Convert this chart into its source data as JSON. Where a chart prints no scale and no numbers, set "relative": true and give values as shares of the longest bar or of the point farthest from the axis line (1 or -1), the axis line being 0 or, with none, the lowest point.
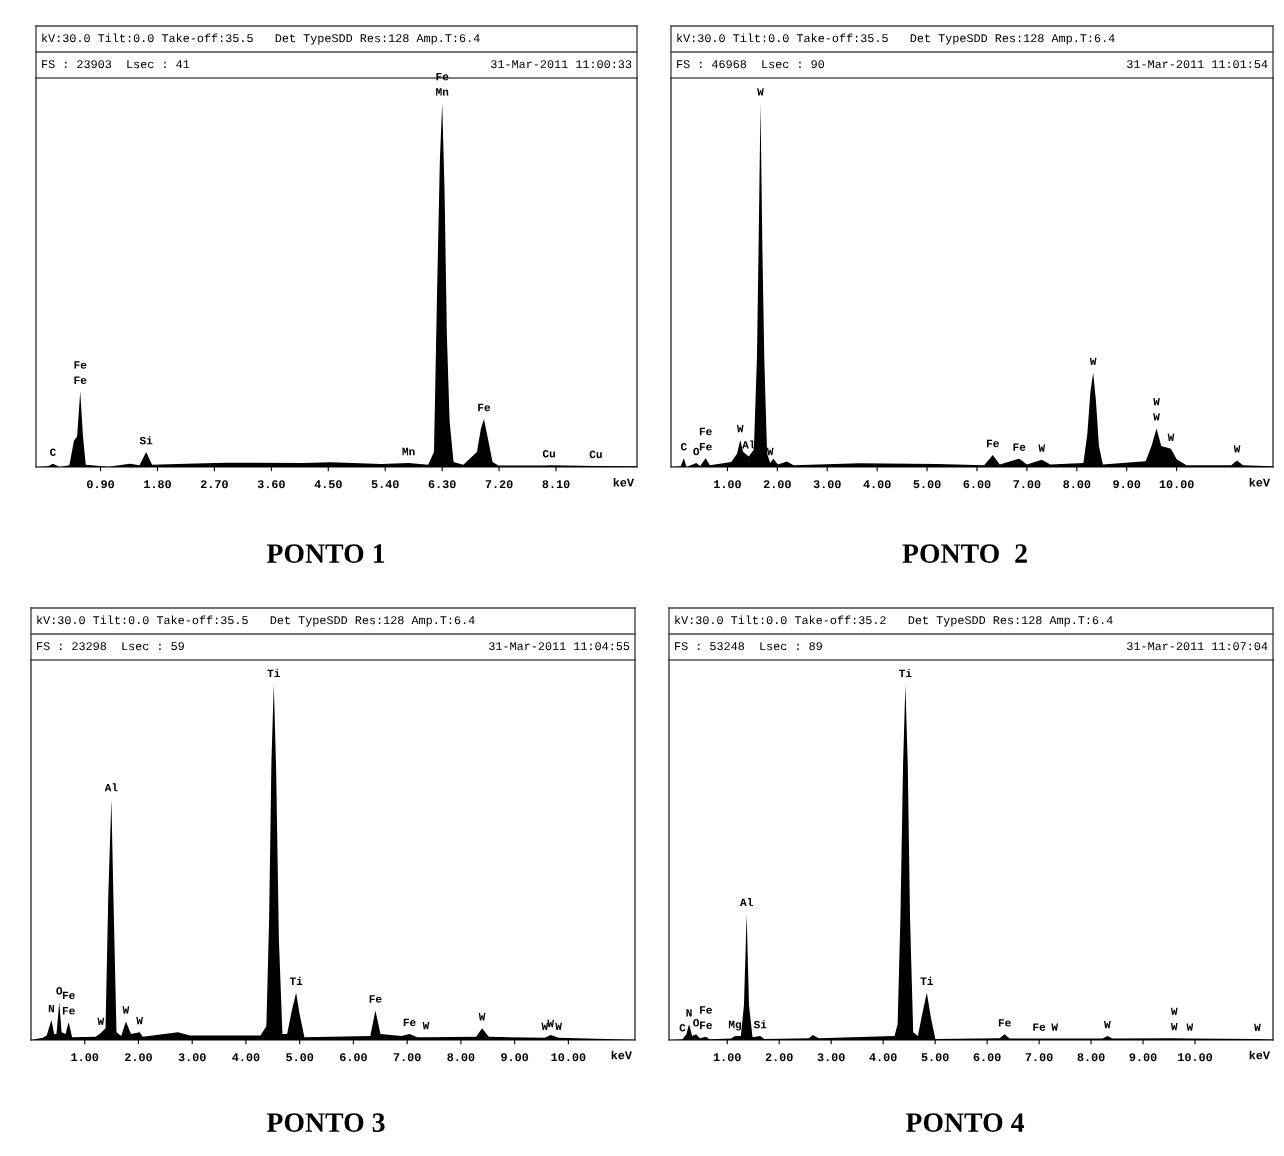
{
  "chart_data": [
    {
      "type": "area",
      "relative": true,
      "title": "kV:30.0 Tilt:0.0 Take-off:35.5   Det TypeSDD Res:128 Amp.T:6.4",
      "xlabel": "keV",
      "xlim": [
        -0.12,
        9.38
      ],
      "xticks": [
        {
          "value": 0.9,
          "label": "0.90"
        },
        {
          "value": 1.8,
          "label": "1.80"
        },
        {
          "value": 2.7,
          "label": "2.70"
        },
        {
          "value": 3.6,
          "label": "3.60"
        },
        {
          "value": 4.5,
          "label": "4.50"
        },
        {
          "value": 5.4,
          "label": "5.40"
        },
        {
          "value": 6.3,
          "label": "6.30"
        },
        {
          "value": 7.2,
          "label": "7.20"
        },
        {
          "value": 8.1,
          "label": "8.10"
        }
      ],
      "series": [
        {
          "color": "#000000",
          "x": [
            -0.12,
            0.068,
            0.148,
            0.253,
            0.407,
            0.481,
            0.53,
            0.579,
            0.623,
            0.666,
            1.023,
            1.362,
            1.517,
            1.621,
            1.714,
            2.256,
            2.873,
            4.106,
            4.537,
            5.339,
            5.77,
            6.079,
            6.171,
            6.221,
            6.264,
            6.301,
            6.338,
            6.375,
            6.418,
            6.48,
            6.634,
            6.85,
            6.912,
            6.961,
            7.017,
            7.097,
            7.189,
            7.928,
            7.99,
            8.73,
            9.377
          ],
          "values": [
            0,
            0.002,
            0.009,
            0,
            0.005,
            0.073,
            0.084,
            0.207,
            0.084,
            0.006,
            0.001,
            0.009,
            0.005,
            0.041,
            0.006,
            0.009,
            0.012,
            0.011,
            0.013,
            0.008,
            0.011,
            0.006,
            0.041,
            0.491,
            0.845,
            1.0,
            0.759,
            0.362,
            0.126,
            0.014,
            0.006,
            0.041,
            0.105,
            0.132,
            0.084,
            0.014,
            0.004,
            0.004,
            0.005,
            0.003,
            0.002
          ]
        }
      ],
      "annotations": [
        "FS : 23903  Lsec : 41",
        "31-Mar-2011 11:00:33",
        "PONTO 1",
        {
          "text": "C",
          "x": 0.148,
          "y": 0.009
        },
        {
          "text": "Fe",
          "x": 0.579,
          "y": 0.207
        },
        {
          "text": "Fe",
          "x": 0.579,
          "y": 0.207
        },
        {
          "text": "Si",
          "x": 1.621,
          "y": 0.041
        },
        {
          "text": "Mn",
          "x": 5.77,
          "y": 0.011
        },
        {
          "text": "Mn",
          "x": 6.301,
          "y": 1.0
        },
        {
          "text": "Fe",
          "x": 6.301,
          "y": 1.0
        },
        {
          "text": "Fe",
          "x": 6.961,
          "y": 0.132
        },
        {
          "text": "Cu",
          "x": 7.99,
          "y": 0.005
        },
        {
          "text": "Cu",
          "x": 8.73,
          "y": 0.003
        }
      ]
    },
    {
      "type": "area",
      "relative": true,
      "title": "kV:30.0 Tilt:0.0 Take-off:35.5   Det TypeSDD Res:128 Amp.T:6.4",
      "xlabel": "keV",
      "xlim": [
        -0.13,
        11.93
      ],
      "xticks": [
        {
          "value": 1,
          "label": "1.00"
        },
        {
          "value": 2,
          "label": "2.00"
        },
        {
          "value": 3,
          "label": "3.00"
        },
        {
          "value": 4,
          "label": "4.00"
        },
        {
          "value": 5,
          "label": "5.00"
        },
        {
          "value": 6,
          "label": "6.00"
        },
        {
          "value": 7,
          "label": "7.00"
        },
        {
          "value": 8,
          "label": "8.00"
        },
        {
          "value": 9,
          "label": "9.00"
        },
        {
          "value": 10,
          "label": "10.00"
        }
      ],
      "series": [
        {
          "color": "#000000",
          "x": [
            -0.13,
            0.065,
            0.127,
            0.182,
            0.376,
            0.454,
            0.564,
            0.649,
            1.078,
            1.195,
            1.257,
            1.312,
            1.429,
            1.53,
            1.592,
            1.624,
            1.663,
            1.701,
            1.74,
            1.795,
            1.857,
            1.92,
            2.013,
            2.193,
            2.325,
            3.65,
            5.209,
            6.144,
            6.316,
            6.456,
            6.846,
            7.002,
            7.298,
            7.469,
            8.132,
            8.21,
            8.272,
            8.327,
            8.381,
            8.443,
            8.521,
            9.379,
            9.496,
            9.597,
            9.691,
            9.886,
            10.0,
            10.197,
            11.093,
            11.21,
            11.327,
            11.927
          ],
          "values": [
            0,
            0.002,
            0.024,
            0,
            0.011,
            0.003,
            0.024,
            0.005,
            0.014,
            0.037,
            0.074,
            0.042,
            0.029,
            0.048,
            0.302,
            0.598,
            1.0,
            0.598,
            0.291,
            0.037,
            0.011,
            0.023,
            0.007,
            0.015,
            0.005,
            0.01,
            0.008,
            0.005,
            0.033,
            0.007,
            0.023,
            0.007,
            0.02,
            0.007,
            0.011,
            0.09,
            0.206,
            0.259,
            0.185,
            0.058,
            0.007,
            0.016,
            0.058,
            0.106,
            0.058,
            0.05,
            0.021,
            0.005,
            0.005,
            0.018,
            0.005,
            0.002
          ]
        }
      ],
      "annotations": [
        "FS : 46968  Lsec : 90",
        "31-Mar-2011 11:01:54",
        "PONTO  2",
        {
          "text": "C",
          "x": 0.127,
          "y": 0.024
        },
        {
          "text": "O",
          "x": 0.376,
          "y": 0.011
        },
        {
          "text": "Fe",
          "x": 0.564,
          "y": 0.024
        },
        {
          "text": "Fe",
          "x": 0.564,
          "y": 0.024
        },
        {
          "text": "Al",
          "x": 1.429,
          "y": 0.029
        },
        {
          "text": "W",
          "x": 1.257,
          "y": 0.074
        },
        {
          "text": "W",
          "x": 1.857,
          "y": 0.011
        },
        {
          "text": "W",
          "x": 1.663,
          "y": 1.0
        },
        {
          "text": "Fe",
          "x": 6.316,
          "y": 0.033
        },
        {
          "text": "Fe",
          "x": 6.846,
          "y": 0.023
        },
        {
          "text": "W",
          "x": 7.298,
          "y": 0.02
        },
        {
          "text": "W",
          "x": 8.327,
          "y": 0.259
        },
        {
          "text": "W",
          "x": 9.597,
          "y": 0.106
        },
        {
          "text": "W",
          "x": 9.597,
          "y": 0.106
        },
        {
          "text": "W",
          "x": 9.886,
          "y": 0.05
        },
        {
          "text": "W",
          "x": 11.21,
          "y": 0.018
        }
      ]
    },
    {
      "type": "area",
      "relative": true,
      "title": "kV:30.0 Tilt:0.0 Take-off:35.5   Det TypeSDD Res:128 Amp.T:6.4",
      "xlabel": "keV",
      "xlim": [
        0,
        11.24
      ],
      "xticks": [
        {
          "value": 1,
          "label": "1.00"
        },
        {
          "value": 2,
          "label": "2.00"
        },
        {
          "value": 3,
          "label": "3.00"
        },
        {
          "value": 4,
          "label": "4.00"
        },
        {
          "value": 5,
          "label": "5.00"
        },
        {
          "value": 6,
          "label": "6.00"
        },
        {
          "value": 7,
          "label": "7.00"
        },
        {
          "value": 8,
          "label": "8.00"
        },
        {
          "value": 9,
          "label": "9.00"
        },
        {
          "value": 10,
          "label": "10.00"
        }
      ],
      "series": [
        {
          "color": "#000000",
          "x": [
            0.0,
            0.219,
            0.292,
            0.38,
            0.431,
            0.474,
            0.526,
            0.569,
            0.642,
            0.701,
            0.766,
            1.204,
            1.3,
            1.387,
            1.438,
            1.496,
            1.533,
            1.591,
            1.679,
            1.766,
            1.861,
            2.022,
            2.08,
            2.737,
            2.956,
            4.27,
            4.38,
            4.431,
            4.474,
            4.518,
            4.562,
            4.613,
            4.679,
            4.766,
            4.854,
            4.934,
            5.0,
            5.088,
            6.314,
            6.409,
            6.504,
            6.898,
            7.044,
            7.19,
            7.35,
            8.285,
            8.394,
            8.518,
            9.562,
            9.672,
            9.818,
            11.24
          ],
          "values": [
            0,
            0.006,
            0.013,
            0.056,
            0.017,
            0.017,
            0.106,
            0.022,
            0.017,
            0.05,
            0.008,
            0.009,
            0.02,
            0.033,
            0.406,
            0.678,
            0.406,
            0.022,
            0.011,
            0.052,
            0.017,
            0.022,
            0.009,
            0.022,
            0.013,
            0.013,
            0.039,
            0.339,
            0.783,
            1.0,
            0.761,
            0.283,
            0.017,
            0.017,
            0.083,
            0.133,
            0.072,
            0.008,
            0.011,
            0.083,
            0.017,
            0.011,
            0.017,
            0.008,
            0.008,
            0.009,
            0.033,
            0.009,
            0.006,
            0.014,
            0.006,
            0.001
          ]
        }
      ],
      "annotations": [
        "FS : 23298  Lsec : 59",
        "31-Mar-2011 11:04:55",
        "PONTO 3",
        {
          "text": "N",
          "x": 0.38,
          "y": 0.056
        },
        {
          "text": "O",
          "x": 0.526,
          "y": 0.106
        },
        {
          "text": "Fe",
          "x": 0.701,
          "y": 0.05
        },
        {
          "text": "Fe",
          "x": 0.701,
          "y": 0.05
        },
        {
          "text": "Al",
          "x": 1.496,
          "y": 0.678
        },
        {
          "text": "W",
          "x": 1.3,
          "y": 0.02
        },
        {
          "text": "W",
          "x": 1.766,
          "y": 0.052
        },
        {
          "text": "W",
          "x": 2.022,
          "y": 0.022
        },
        {
          "text": "Ti",
          "x": 4.518,
          "y": 1.0
        },
        {
          "text": "Ti",
          "x": 4.934,
          "y": 0.133
        },
        {
          "text": "Fe",
          "x": 6.409,
          "y": 0.083
        },
        {
          "text": "Fe",
          "x": 7.044,
          "y": 0.017
        },
        {
          "text": "W",
          "x": 7.35,
          "y": 0.008
        },
        {
          "text": "W",
          "x": 8.394,
          "y": 0.033
        },
        {
          "text": "W",
          "x": 9.562,
          "y": 0.006
        },
        {
          "text": "W",
          "x": 9.672,
          "y": 0.014
        },
        {
          "text": "W",
          "x": 9.818,
          "y": 0.006
        }
      ]
    },
    {
      "type": "area",
      "relative": true,
      "title": "kV:30.0 Tilt:0.0 Take-off:35.2   Det TypeSDD Res:128 Amp.T:6.4",
      "xlabel": "keV",
      "xlim": [
        -0.12,
        11.5
      ],
      "xticks": [
        {
          "value": 1,
          "label": "1.00"
        },
        {
          "value": 2,
          "label": "2.00"
        },
        {
          "value": 3,
          "label": "3.00"
        },
        {
          "value": 4,
          "label": "4.00"
        },
        {
          "value": 5,
          "label": "5.00"
        },
        {
          "value": 6,
          "label": "6.00"
        },
        {
          "value": 7,
          "label": "7.00"
        },
        {
          "value": 8,
          "label": "8.00"
        },
        {
          "value": 9,
          "label": "9.00"
        },
        {
          "value": 10,
          "label": "10.00"
        }
      ],
      "series": [
        {
          "color": "#000000",
          "x": [
            -0.12,
            0.139,
            0.214,
            0.266,
            0.326,
            0.401,
            0.476,
            0.588,
            0.663,
            1.075,
            1.15,
            1.262,
            1.322,
            1.374,
            1.419,
            1.487,
            1.636,
            1.711,
            2.572,
            2.647,
            2.759,
            4.219,
            4.278,
            4.331,
            4.383,
            4.428,
            4.473,
            4.518,
            4.578,
            4.668,
            4.757,
            4.84,
            4.915,
            5.004,
            6.24,
            6.337,
            6.434,
            7.0,
            7.3,
            8.223,
            8.313,
            8.41,
            9.6,
            9.9,
            11.2,
            11.494
          ],
          "values": [
            0,
            0.002,
            0.016,
            0.044,
            0.011,
            0.016,
            0.005,
            0.009,
            0.002,
            0.004,
            0.011,
            0.011,
            0.098,
            0.355,
            0.098,
            0.008,
            0.011,
            0.003,
            0.005,
            0.014,
            0.005,
            0.011,
            0.044,
            0.339,
            0.776,
            1.0,
            0.776,
            0.339,
            0.022,
            0.011,
            0.077,
            0.133,
            0.066,
            0.003,
            0.005,
            0.016,
            0.004,
            0.004,
            0.004,
            0.004,
            0.011,
            0.004,
            0.005,
            0.004,
            0.003,
            0.001
          ]
        }
      ],
      "annotations": [
        "FS : 53248  Lsec : 89",
        "31-Mar-2011 11:07:04",
        "PONTO 4",
        {
          "text": "C",
          "x": 0.139,
          "y": 0.002
        },
        {
          "text": "N",
          "x": 0.266,
          "y": 0.044
        },
        {
          "text": "O",
          "x": 0.401,
          "y": 0.016
        },
        {
          "text": "Fe",
          "x": 0.588,
          "y": 0.009
        },
        {
          "text": "Fe",
          "x": 0.588,
          "y": 0.009
        },
        {
          "text": "Mg",
          "x": 1.15,
          "y": 0.011
        },
        {
          "text": "Al",
          "x": 1.374,
          "y": 0.355
        },
        {
          "text": "Si",
          "x": 1.636,
          "y": 0.011
        },
        {
          "text": "Ti",
          "x": 4.428,
          "y": 1.0
        },
        {
          "text": "Ti",
          "x": 4.84,
          "y": 0.133
        },
        {
          "text": "Fe",
          "x": 6.337,
          "y": 0.016
        },
        {
          "text": "Fe",
          "x": 7.0,
          "y": 0.004
        },
        {
          "text": "W",
          "x": 7.3,
          "y": 0.004
        },
        {
          "text": "W",
          "x": 8.313,
          "y": 0.011
        },
        {
          "text": "W",
          "x": 9.6,
          "y": 0.005
        },
        {
          "text": "W",
          "x": 9.6,
          "y": 0.005
        },
        {
          "text": "W",
          "x": 9.9,
          "y": 0.004
        },
        {
          "text": "W",
          "x": 11.2,
          "y": 0.003
        }
      ]
    }
  ]
}
